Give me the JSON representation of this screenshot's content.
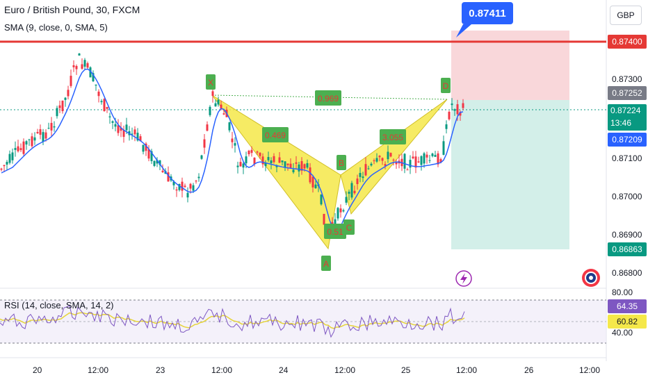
{
  "header": {
    "title": "Euro / British Pound, 30, FXCM",
    "sma_legend": "SMA (9, close, 0, SMA, 5)",
    "currency": "GBP"
  },
  "callout": {
    "price": "0.87411"
  },
  "price_axis": {
    "ticks": [
      "0.87300",
      "0.87100",
      "0.87000",
      "0.86900",
      "0.86800"
    ],
    "tags": {
      "resistance": "0.87400",
      "entry": "0.87252",
      "last": "0.87224",
      "countdown": "13:46",
      "sma": "0.87209",
      "target": "0.86863"
    }
  },
  "pattern": {
    "points": [
      "X",
      "A",
      "B",
      "C",
      "D"
    ],
    "ratios": {
      "xd": "0.969",
      "xb": "0.469",
      "bc": "0.51",
      "cd": "3.055"
    }
  },
  "rsi": {
    "legend": "RSI (14, close, SMA, 14, 2)",
    "axis_ticks": [
      "80.00",
      "40.00"
    ],
    "value_tag": "64.35",
    "sma_tag": "60.82"
  },
  "time_axis": {
    "labels": [
      "20",
      "12:00",
      "23",
      "12:00",
      "24",
      "12:00",
      "25",
      "12:00",
      "26",
      "12:00"
    ]
  },
  "colors": {
    "bull": "#089981",
    "bear": "#f23645",
    "sma": "#2962ff",
    "pattern_fill": "#f5e84a",
    "label_green": "#4caf50",
    "resistance": "#e53935",
    "rsi_line": "#7e57c2",
    "rsi_ma": "#f5e84a",
    "stop_zone": "#f8cdd1",
    "target_zone": "#c8ebe3"
  }
}
